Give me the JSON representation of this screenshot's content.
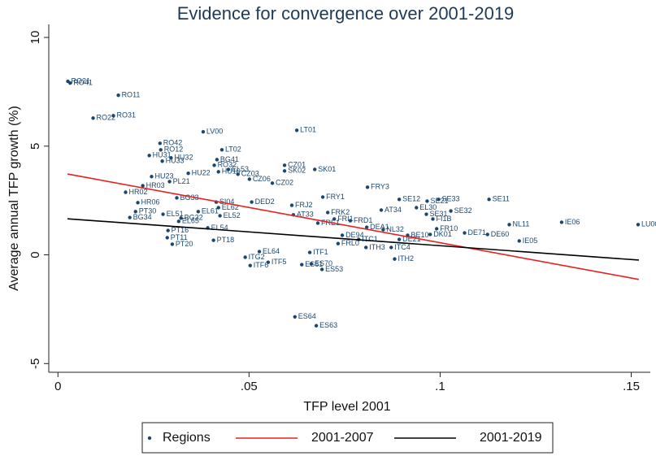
{
  "chart_data": {
    "type": "scatter",
    "title": "Evidence for convergence over 2001-2019",
    "x_label": "TFP level 2001",
    "y_label": "Average annual TFP growth (%)",
    "xlim": [
      -0.0024,
      0.155
    ],
    "ylim": [
      -5.4,
      10.6
    ],
    "xticks": [
      0,
      {
        "value": 0.05,
        "label": ".05"
      },
      {
        "value": 0.1,
        "label": ".1"
      },
      {
        "value": 0.15,
        "label": ".15"
      }
    ],
    "yticks": [
      -5,
      0,
      5,
      10
    ],
    "grid": false,
    "legend": "bottom",
    "series": [
      {
        "name": "Regions",
        "type": "scatter",
        "color": "#1a476f",
        "labels": [
          "RO21",
          "RO41",
          "RO11",
          "RO22",
          "RO31",
          "LV00",
          "LT01",
          "RO42",
          "RO12",
          "HU32",
          "HU31",
          "HU33",
          "LT02",
          "BG41",
          "RO32",
          "EL53",
          "HU22",
          "HU10",
          "CZ03",
          "CZ01",
          "SK02",
          "SK01",
          "CZ06",
          "HU23",
          "HR03",
          "PL21",
          "CZ02",
          "HR02",
          "BG33",
          "FRY3",
          "DED2",
          "SI04",
          "EL62",
          "HR06",
          "EL61",
          "EL52",
          "PT30",
          "EL51",
          "BG34",
          "BG32",
          "EL65",
          "SE12",
          "SE21",
          "SE33",
          "SE11",
          "SE32",
          "AT34",
          "EL30",
          "SE31",
          "FI1B",
          "IE06",
          "NL11",
          "LU00",
          "DE71",
          "DE60",
          "IE05",
          "FR10",
          "DK01",
          "EL54",
          "PT16",
          "PT11",
          "PT20",
          "PT18",
          "ITG2",
          "ITF6",
          "ITF5",
          "EL64",
          "ITH2",
          "ITH3",
          "ITC4",
          "ES70",
          "ES53",
          "ES61",
          "ITF1",
          "ES64",
          "ES63",
          "FRY1",
          "FRJ2",
          "FRK2",
          "FRI1",
          "FRD1",
          "DEA1",
          "NL32",
          "FRE1",
          "AT33",
          "DE94",
          "ITC1",
          "FRL0",
          "BE10",
          "DE21"
        ],
        "x": [
          0.0026,
          0.0032,
          0.0158,
          0.0092,
          0.0145,
          0.038,
          0.0625,
          0.0267,
          0.0269,
          0.0296,
          0.0239,
          0.0273,
          0.0429,
          0.0416,
          0.0409,
          0.0446,
          0.0341,
          0.042,
          0.0471,
          0.0593,
          0.0593,
          0.0672,
          0.0501,
          0.0245,
          0.0222,
          0.0292,
          0.0561,
          0.0177,
          0.0311,
          0.081,
          0.0507,
          0.0414,
          0.042,
          0.0209,
          0.0367,
          0.0424,
          0.0203,
          0.0275,
          0.0188,
          0.0322,
          0.0316,
          0.0893,
          0.0966,
          0.0996,
          0.1128,
          0.1028,
          0.0846,
          0.0938,
          0.0964,
          0.0981,
          0.1318,
          0.1181,
          0.1518,
          0.1064,
          0.1124,
          0.1207,
          0.0991,
          0.0974,
          0.0392,
          0.0288,
          0.0286,
          0.0299,
          0.0407,
          0.049,
          0.0503,
          0.055,
          0.0527,
          0.0881,
          0.0806,
          0.0872,
          0.0663,
          0.0691,
          0.0638,
          0.0659,
          0.062,
          0.0676,
          0.0693,
          0.0612,
          0.0706,
          0.0723,
          0.0765,
          0.0808,
          0.0851,
          0.068,
          0.0616,
          0.0744,
          0.0787,
          0.0733,
          0.0915,
          0.0893
        ],
        "values": [
          7.98,
          7.9,
          7.34,
          6.29,
          6.4,
          5.66,
          5.73,
          5.13,
          4.83,
          4.46,
          4.57,
          4.31,
          4.83,
          4.38,
          4.12,
          3.93,
          3.75,
          3.82,
          3.71,
          4.12,
          3.86,
          3.93,
          3.48,
          3.6,
          3.18,
          3.37,
          3.3,
          2.88,
          2.62,
          3.11,
          2.43,
          2.43,
          2.17,
          2.4,
          1.99,
          1.8,
          1.99,
          1.87,
          1.72,
          1.69,
          1.54,
          2.55,
          2.47,
          2.55,
          2.55,
          2.02,
          2.06,
          2.17,
          1.87,
          1.65,
          1.5,
          1.39,
          1.39,
          1.01,
          0.94,
          0.64,
          1.2,
          0.94,
          1.24,
          1.12,
          0.79,
          0.49,
          0.67,
          -0.11,
          -0.49,
          -0.34,
          0.15,
          -0.19,
          0.34,
          0.34,
          -0.41,
          -0.67,
          -0.45,
          0.11,
          -2.85,
          -3.26,
          2.66,
          2.28,
          1.95,
          1.65,
          1.57,
          1.27,
          1.16,
          1.46,
          1.84,
          0.9,
          0.71,
          0.52,
          0.9,
          0.71
        ]
      },
      {
        "name": "2001-2007",
        "type": "line",
        "color": "#e8201e",
        "x": [
          0.0025,
          0.152
        ],
        "values": [
          3.72,
          -1.13
        ]
      },
      {
        "name": "2001-2019",
        "type": "line",
        "color": "#000000",
        "x": [
          0.0025,
          0.152
        ],
        "values": [
          1.66,
          -0.24
        ]
      }
    ]
  }
}
